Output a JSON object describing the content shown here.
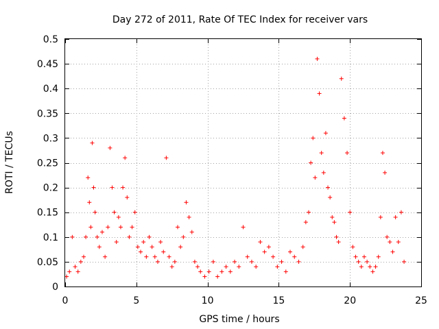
{
  "chart_data": {
    "type": "scatter",
    "title": "Day 272 of 2011, Rate Of TEC Index for receiver vars",
    "xlabel": "GPS time / hours",
    "ylabel": "ROTI / TECUs",
    "xlim": [
      0,
      25
    ],
    "ylim": [
      0,
      0.5
    ],
    "xticks": [
      0,
      5,
      10,
      15,
      20,
      25
    ],
    "xtick_labels": [
      "0",
      "5",
      "10",
      "15",
      "20",
      "25"
    ],
    "yticks": [
      0,
      0.05,
      0.1,
      0.15,
      0.2,
      0.25,
      0.3,
      0.35,
      0.4,
      0.45,
      0.5
    ],
    "ytick_labels": [
      "0",
      "0.05",
      "0.1",
      "0.15",
      "0.2",
      "0.25",
      "0.3",
      "0.35",
      "0.4",
      "0.45",
      "0.5"
    ],
    "grid": true,
    "marker": "+",
    "color": "#ff0000",
    "series": [
      {
        "name": "ROTI",
        "x": [
          0.1,
          0.3,
          0.5,
          0.7,
          0.9,
          1.1,
          1.3,
          1.45,
          1.6,
          1.7,
          1.8,
          1.9,
          2.0,
          2.1,
          2.25,
          2.4,
          2.6,
          2.8,
          3.0,
          3.15,
          3.3,
          3.45,
          3.6,
          3.75,
          3.9,
          4.05,
          4.2,
          4.35,
          4.5,
          4.7,
          4.9,
          5.1,
          5.3,
          5.5,
          5.7,
          5.9,
          6.1,
          6.3,
          6.5,
          6.7,
          6.9,
          7.1,
          7.3,
          7.5,
          7.7,
          7.9,
          8.1,
          8.3,
          8.5,
          8.7,
          8.9,
          9.1,
          9.3,
          9.5,
          9.8,
          10.1,
          10.4,
          10.7,
          11.0,
          11.3,
          11.6,
          11.9,
          12.2,
          12.5,
          12.8,
          13.1,
          13.4,
          13.7,
          14.0,
          14.3,
          14.6,
          14.9,
          15.2,
          15.5,
          15.8,
          16.1,
          16.4,
          16.7,
          16.9,
          17.1,
          17.25,
          17.4,
          17.55,
          17.7,
          17.85,
          18.0,
          18.15,
          18.3,
          18.45,
          18.6,
          18.75,
          18.9,
          19.05,
          19.2,
          19.4,
          19.6,
          19.8,
          20.0,
          20.2,
          20.4,
          20.6,
          20.8,
          21.0,
          21.2,
          21.4,
          21.6,
          21.8,
          22.0,
          22.15,
          22.3,
          22.45,
          22.6,
          22.8,
          23.0,
          23.2,
          23.4,
          23.6,
          23.8
        ],
        "y": [
          0.02,
          0.03,
          0.1,
          0.04,
          0.03,
          0.05,
          0.06,
          0.1,
          0.22,
          0.17,
          0.12,
          0.29,
          0.2,
          0.15,
          0.1,
          0.08,
          0.11,
          0.06,
          0.12,
          0.28,
          0.2,
          0.15,
          0.09,
          0.14,
          0.12,
          0.2,
          0.26,
          0.18,
          0.1,
          0.12,
          0.15,
          0.08,
          0.07,
          0.09,
          0.06,
          0.1,
          0.08,
          0.06,
          0.05,
          0.09,
          0.07,
          0.26,
          0.06,
          0.04,
          0.05,
          0.12,
          0.08,
          0.1,
          0.17,
          0.14,
          0.11,
          0.05,
          0.04,
          0.03,
          0.02,
          0.03,
          0.05,
          0.02,
          0.03,
          0.04,
          0.03,
          0.05,
          0.04,
          0.12,
          0.06,
          0.05,
          0.04,
          0.09,
          0.07,
          0.08,
          0.06,
          0.04,
          0.05,
          0.03,
          0.07,
          0.06,
          0.05,
          0.08,
          0.13,
          0.15,
          0.25,
          0.3,
          0.22,
          0.46,
          0.39,
          0.27,
          0.23,
          0.31,
          0.2,
          0.18,
          0.14,
          0.13,
          0.1,
          0.09,
          0.42,
          0.34,
          0.27,
          0.15,
          0.08,
          0.06,
          0.05,
          0.04,
          0.06,
          0.05,
          0.04,
          0.03,
          0.04,
          0.06,
          0.14,
          0.27,
          0.23,
          0.1,
          0.09,
          0.07,
          0.14,
          0.09,
          0.15,
          0.05
        ]
      }
    ]
  }
}
